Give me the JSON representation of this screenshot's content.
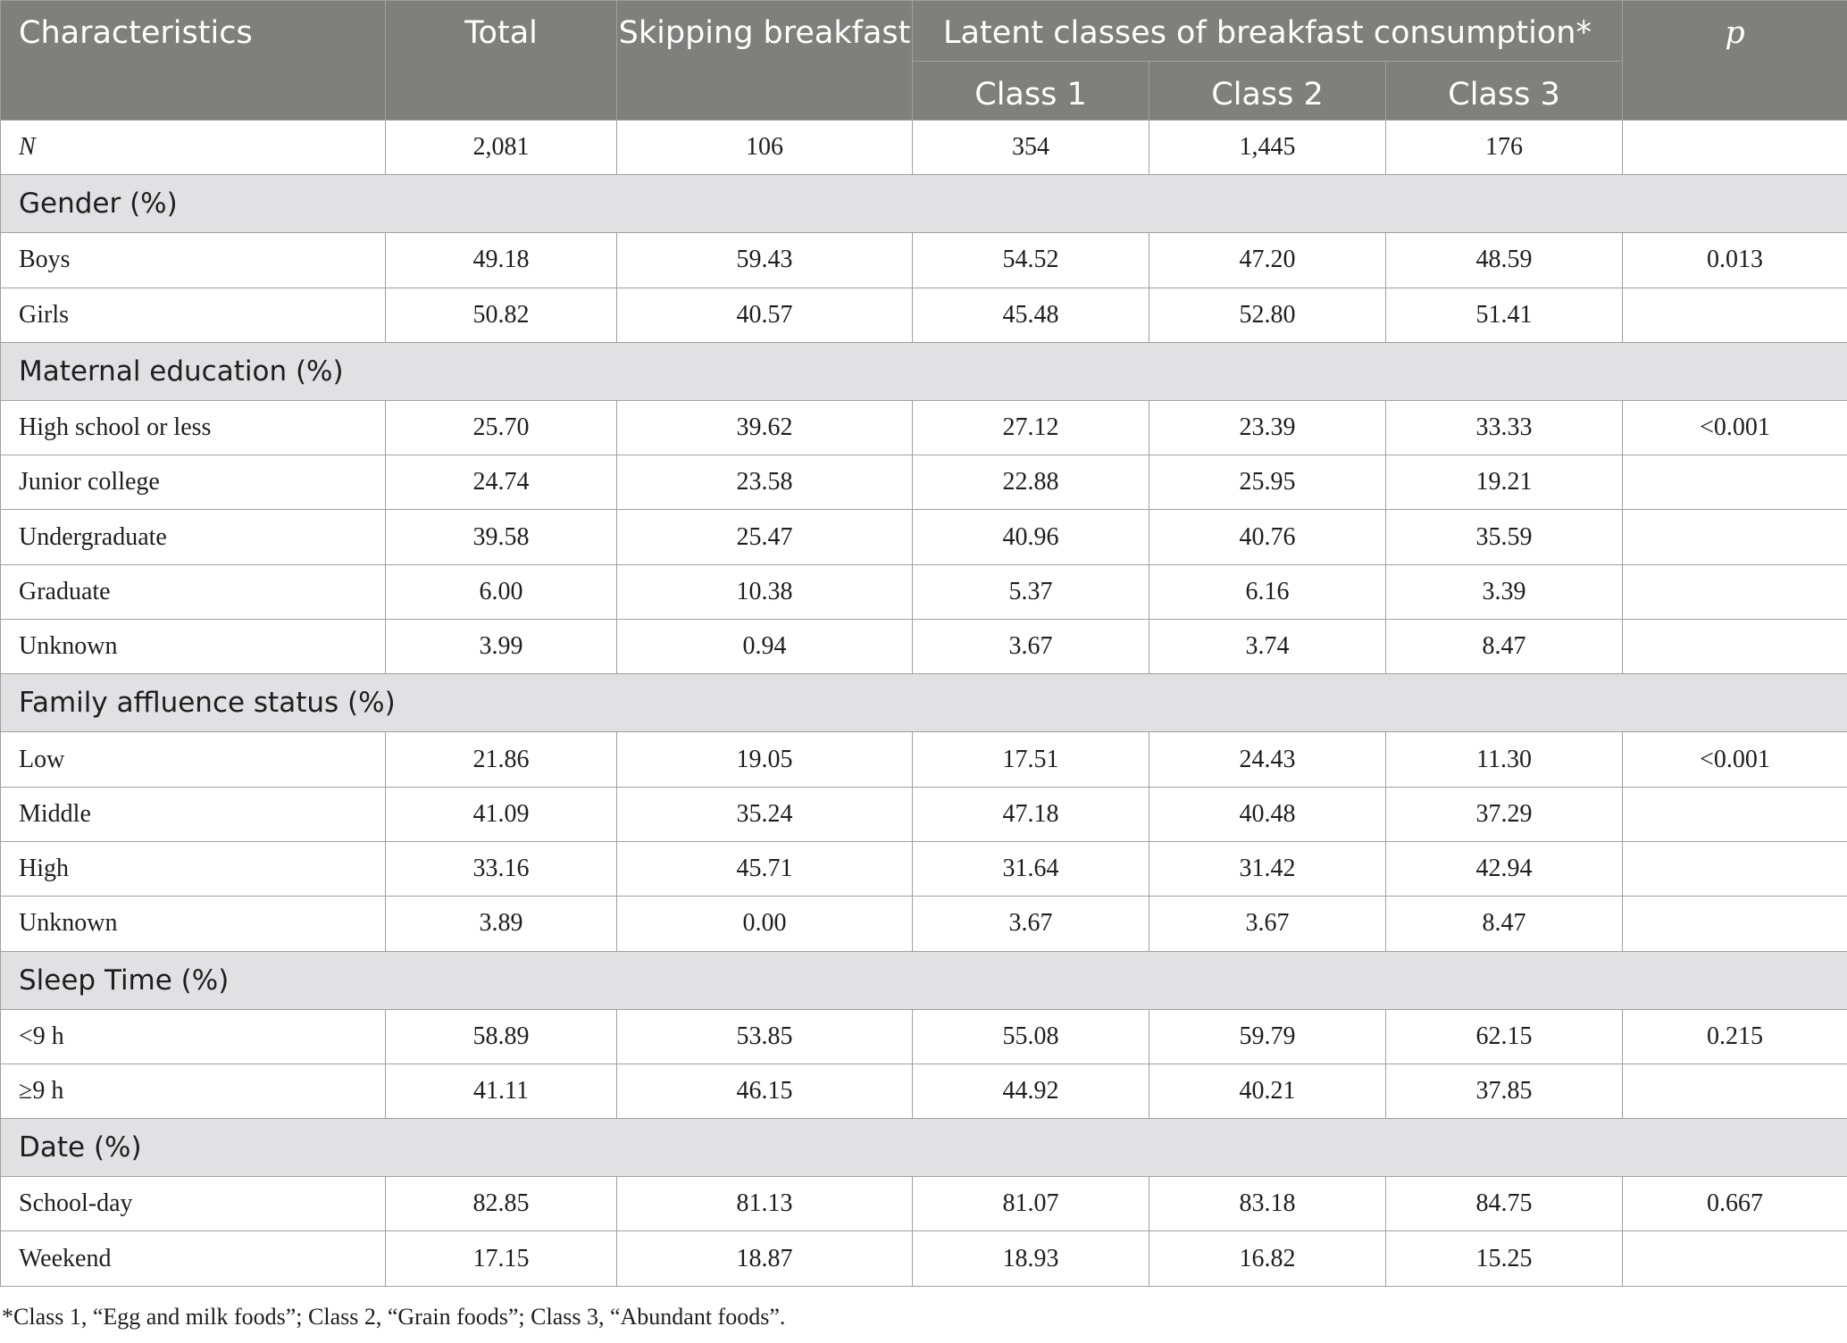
{
  "header": {
    "characteristics": "Characteristics",
    "total": "Total",
    "skipping": "Skipping breakfast",
    "latent": "Latent classes of breakfast consumption*",
    "p": "p",
    "class1": "Class 1",
    "class2": "Class 2",
    "class3": "Class 3"
  },
  "n_row": {
    "label": "N",
    "total": "2,081",
    "skipping": "106",
    "class1": "354",
    "class2": "1,445",
    "class3": "176",
    "p": ""
  },
  "sections": [
    {
      "title": "Gender (%)",
      "rows": [
        {
          "label": "Boys",
          "total": "49.18",
          "skipping": "59.43",
          "class1": "54.52",
          "class2": "47.20",
          "class3": "48.59",
          "p": "0.013"
        },
        {
          "label": "Girls",
          "total": "50.82",
          "skipping": "40.57",
          "class1": "45.48",
          "class2": "52.80",
          "class3": "51.41",
          "p": ""
        }
      ]
    },
    {
      "title": "Maternal education (%)",
      "rows": [
        {
          "label": "High school or less",
          "total": "25.70",
          "skipping": "39.62",
          "class1": "27.12",
          "class2": "23.39",
          "class3": "33.33",
          "p": "<0.001"
        },
        {
          "label": "Junior college",
          "total": "24.74",
          "skipping": "23.58",
          "class1": "22.88",
          "class2": "25.95",
          "class3": "19.21",
          "p": ""
        },
        {
          "label": "Undergraduate",
          "total": "39.58",
          "skipping": "25.47",
          "class1": "40.96",
          "class2": "40.76",
          "class3": "35.59",
          "p": ""
        },
        {
          "label": "Graduate",
          "total": "6.00",
          "skipping": "10.38",
          "class1": "5.37",
          "class2": "6.16",
          "class3": "3.39",
          "p": ""
        },
        {
          "label": "Unknown",
          "total": "3.99",
          "skipping": "0.94",
          "class1": "3.67",
          "class2": "3.74",
          "class3": "8.47",
          "p": ""
        }
      ]
    },
    {
      "title": "Family affluence status (%)",
      "rows": [
        {
          "label": "Low",
          "total": "21.86",
          "skipping": "19.05",
          "class1": "17.51",
          "class2": "24.43",
          "class3": "11.30",
          "p": "<0.001"
        },
        {
          "label": "Middle",
          "total": "41.09",
          "skipping": "35.24",
          "class1": "47.18",
          "class2": "40.48",
          "class3": "37.29",
          "p": ""
        },
        {
          "label": "High",
          "total": "33.16",
          "skipping": "45.71",
          "class1": "31.64",
          "class2": "31.42",
          "class3": "42.94",
          "p": ""
        },
        {
          "label": "Unknown",
          "total": "3.89",
          "skipping": "0.00",
          "class1": "3.67",
          "class2": "3.67",
          "class3": "8.47",
          "p": ""
        }
      ]
    },
    {
      "title": "Sleep Time (%)",
      "rows": [
        {
          "label": "<9 h",
          "total": "58.89",
          "skipping": "53.85",
          "class1": "55.08",
          "class2": "59.79",
          "class3": "62.15",
          "p": "0.215"
        },
        {
          "label": "≥9 h",
          "total": "41.11",
          "skipping": "46.15",
          "class1": "44.92",
          "class2": "40.21",
          "class3": "37.85",
          "p": ""
        }
      ]
    },
    {
      "title": "Date (%)",
      "rows": [
        {
          "label": "School-day",
          "total": "82.85",
          "skipping": "81.13",
          "class1": "81.07",
          "class2": "83.18",
          "class3": "84.75",
          "p": "0.667"
        },
        {
          "label": "Weekend",
          "total": "17.15",
          "skipping": "18.87",
          "class1": "18.93",
          "class2": "16.82",
          "class3": "15.25",
          "p": ""
        }
      ]
    }
  ],
  "footnote": "*Class 1, “Egg and milk foods”; Class 2, “Grain foods”; Class 3, “Abundant foods”."
}
